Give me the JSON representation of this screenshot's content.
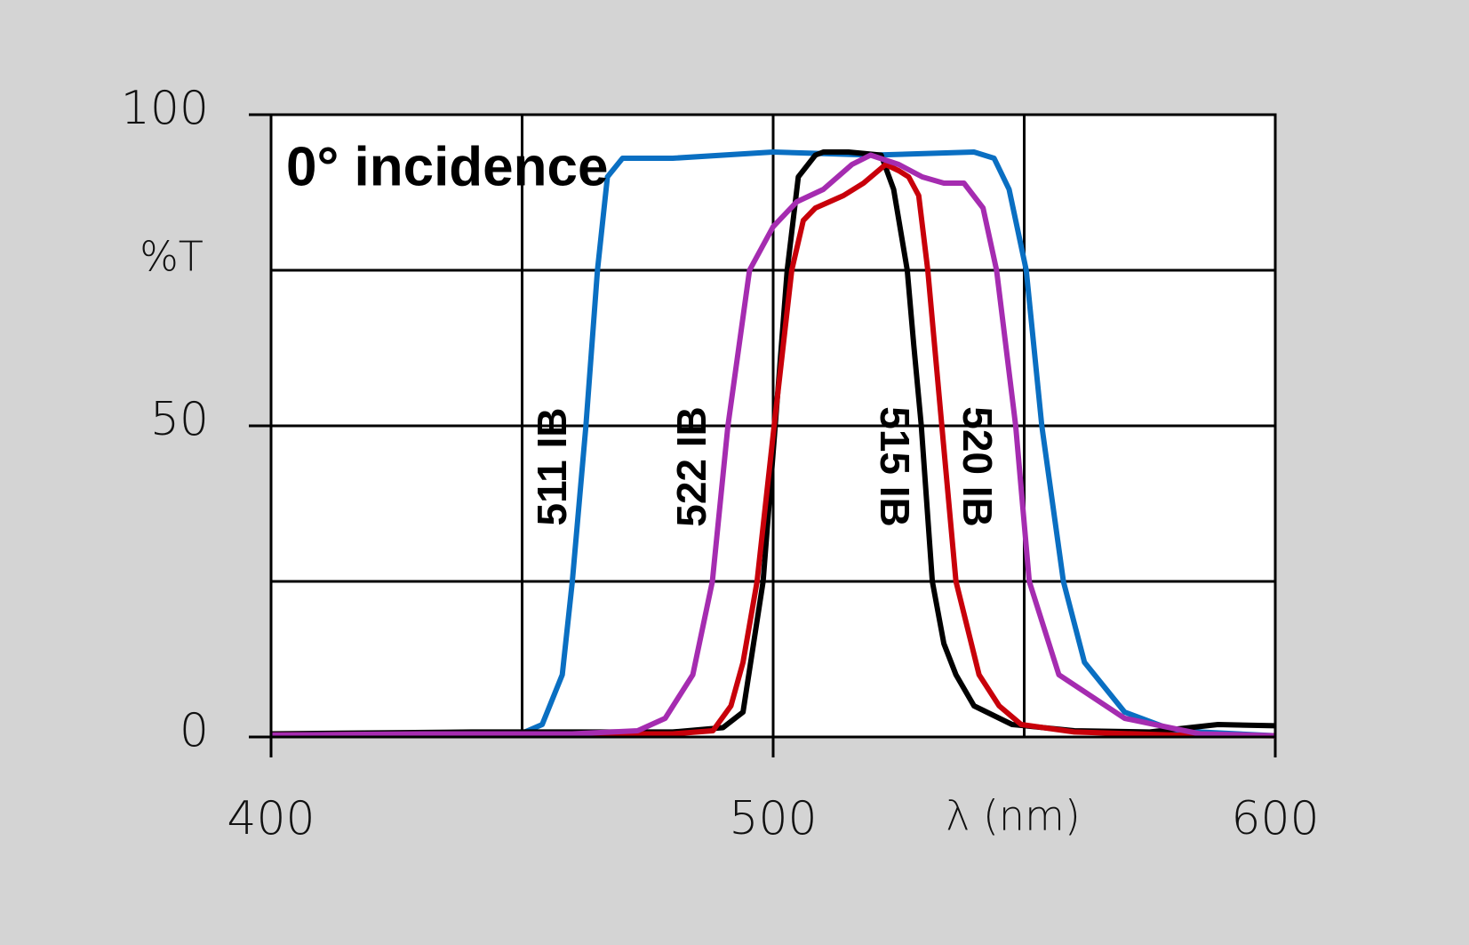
{
  "chart_data": {
    "type": "line",
    "annotation": "0° incidence",
    "y_label": "%T",
    "x_label": "λ (nm)",
    "xlim": [
      400,
      600
    ],
    "xticks": [
      400,
      500,
      600
    ],
    "xgrid": [
      400,
      450,
      500,
      550,
      600
    ],
    "ylim": [
      0,
      100
    ],
    "yticks": [
      0,
      50,
      100
    ],
    "ygrid": [
      0,
      25,
      50,
      75,
      100
    ],
    "grid": true,
    "series": [
      {
        "name": "511 IB",
        "color": "#0a6fc2",
        "x": [
          400,
          420,
          440,
          450,
          454,
          458,
          460,
          462.7,
          465,
          467,
          470,
          480,
          500,
          520,
          540,
          544,
          547,
          550.4,
          553.5,
          557.8,
          562,
          570,
          580,
          600
        ],
        "values": [
          0.3,
          0.3,
          0.5,
          0.6,
          2,
          10,
          25,
          50,
          75,
          90,
          93,
          93,
          94,
          93.5,
          94,
          93,
          88,
          75,
          50,
          25,
          12,
          4,
          1,
          0.2
        ]
      },
      {
        "name": "515 IB",
        "color": "#000000",
        "x": [
          400,
          440,
          480,
          490,
          494,
          498,
          500.4,
          502.8,
          505,
          508.4,
          510,
          515,
          521.5,
          524,
          526.7,
          528,
          529.5,
          531.7,
          534,
          536.4,
          540,
          547.6,
          560,
          575,
          588.6,
          600
        ],
        "values": [
          0.5,
          0.8,
          0.8,
          1.5,
          4,
          25,
          50,
          75,
          90,
          93.5,
          94,
          94,
          93.5,
          88,
          75,
          63,
          50,
          25,
          15,
          10,
          5,
          2,
          1,
          0.8,
          2,
          1.8
        ]
      },
      {
        "name": "520 IB",
        "color": "#c8000a",
        "x": [
          400,
          440,
          480,
          488,
          491.6,
          494,
          496.8,
          500.2,
          503.7,
          506,
          508.4,
          514,
          518,
          522.4,
          525,
          527,
          529,
          530.8,
          533.6,
          536.4,
          541,
          545,
          549.4,
          560,
          580,
          600
        ],
        "values": [
          0.3,
          0.5,
          0.5,
          1,
          5,
          12,
          25,
          50,
          75,
          83,
          85,
          87,
          89,
          92,
          91,
          90,
          87,
          75,
          50,
          25,
          10,
          5,
          2,
          0.8,
          0.3,
          0.2
        ]
      },
      {
        "name": "522 IB",
        "color": "#a52cb0",
        "x": [
          400,
          430,
          460,
          473,
          478.5,
          484,
          487.9,
          491,
          495.3,
          500,
          504.7,
          510,
          515.7,
          519.4,
          525,
          529.7,
          534,
          538,
          541.8,
          544.5,
          548.3,
          551,
          556.9,
          570,
          585,
          600
        ],
        "values": [
          0.3,
          0.5,
          0.5,
          1,
          3,
          10,
          25,
          50,
          75,
          82,
          86,
          88,
          92,
          93.5,
          92,
          90,
          89,
          89,
          85,
          75,
          50,
          25,
          10,
          3,
          0.5,
          0.2
        ]
      }
    ]
  }
}
